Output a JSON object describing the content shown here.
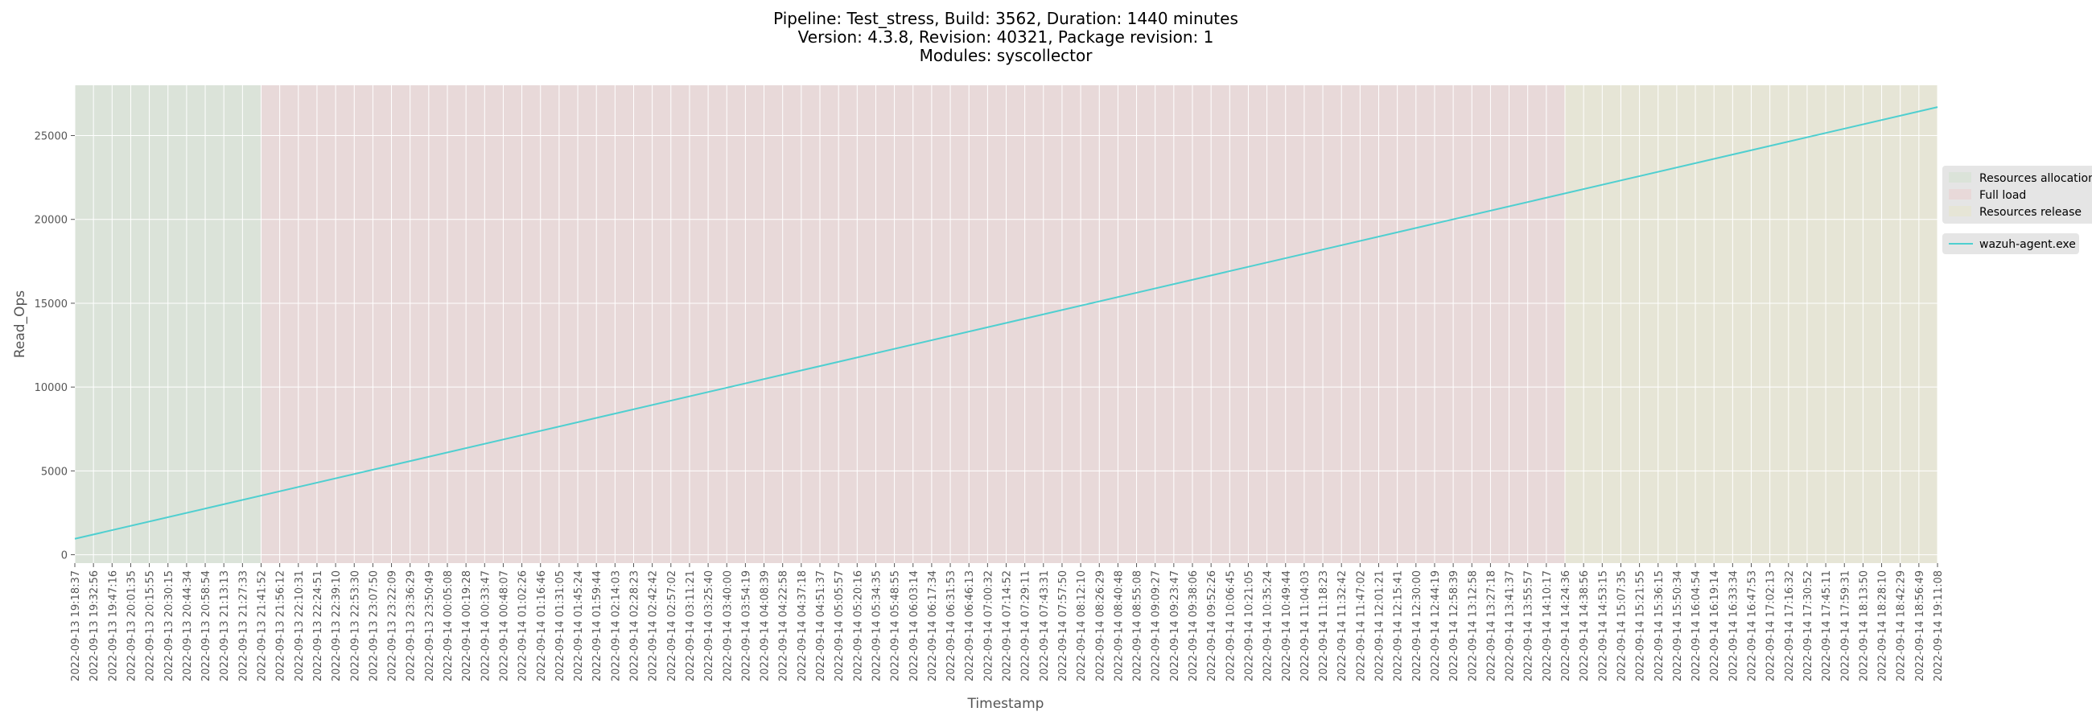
{
  "chart_data": {
    "type": "line",
    "title_lines": [
      "Pipeline: Test_stress, Build: 3562, Duration: 1440 minutes",
      "Version: 4.3.8, Revision: 40321, Package revision: 1",
      "Modules: syscollector"
    ],
    "xlabel": "Timestamp",
    "ylabel": "Read_Ops",
    "ylim": [
      -500,
      28000
    ],
    "yticks": [
      0,
      5000,
      10000,
      15000,
      20000,
      25000
    ],
    "x_tick_labels": [
      "2022-09-13 19:18:37",
      "2022-09-13 19:32:56",
      "2022-09-13 19:47:16",
      "2022-09-13 20:01:35",
      "2022-09-13 20:15:55",
      "2022-09-13 20:30:15",
      "2022-09-13 20:44:34",
      "2022-09-13 20:58:54",
      "2022-09-13 21:13:13",
      "2022-09-13 21:27:33",
      "2022-09-13 21:41:52",
      "2022-09-13 21:56:12",
      "2022-09-13 22:10:31",
      "2022-09-13 22:24:51",
      "2022-09-13 22:39:10",
      "2022-09-13 22:53:30",
      "2022-09-13 23:07:50",
      "2022-09-13 23:22:09",
      "2022-09-13 23:36:29",
      "2022-09-13 23:50:49",
      "2022-09-14 00:05:08",
      "2022-09-14 00:19:28",
      "2022-09-14 00:33:47",
      "2022-09-14 00:48:07",
      "2022-09-14 01:02:26",
      "2022-09-14 01:16:46",
      "2022-09-14 01:31:05",
      "2022-09-14 01:45:24",
      "2022-09-14 01:59:44",
      "2022-09-14 02:14:03",
      "2022-09-14 02:28:23",
      "2022-09-14 02:42:42",
      "2022-09-14 02:57:02",
      "2022-09-14 03:11:21",
      "2022-09-14 03:25:40",
      "2022-09-14 03:40:00",
      "2022-09-14 03:54:19",
      "2022-09-14 04:08:39",
      "2022-09-14 04:22:58",
      "2022-09-14 04:37:18",
      "2022-09-14 04:51:37",
      "2022-09-14 05:05:57",
      "2022-09-14 05:20:16",
      "2022-09-14 05:34:35",
      "2022-09-14 05:48:55",
      "2022-09-14 06:03:14",
      "2022-09-14 06:17:34",
      "2022-09-14 06:31:53",
      "2022-09-14 06:46:13",
      "2022-09-14 07:00:32",
      "2022-09-14 07:14:52",
      "2022-09-14 07:29:11",
      "2022-09-14 07:43:31",
      "2022-09-14 07:57:50",
      "2022-09-14 08:12:10",
      "2022-09-14 08:26:29",
      "2022-09-14 08:40:48",
      "2022-09-14 08:55:08",
      "2022-09-14 09:09:27",
      "2022-09-14 09:23:47",
      "2022-09-14 09:38:06",
      "2022-09-14 09:52:26",
      "2022-09-14 10:06:45",
      "2022-09-14 10:21:05",
      "2022-09-14 10:35:24",
      "2022-09-14 10:49:44",
      "2022-09-14 11:04:03",
      "2022-09-14 11:18:23",
      "2022-09-14 11:32:42",
      "2022-09-14 11:47:02",
      "2022-09-14 12:01:21",
      "2022-09-14 12:15:41",
      "2022-09-14 12:30:00",
      "2022-09-14 12:44:19",
      "2022-09-14 12:58:39",
      "2022-09-14 13:12:58",
      "2022-09-14 13:27:18",
      "2022-09-14 13:41:37",
      "2022-09-14 13:55:57",
      "2022-09-14 14:10:17",
      "2022-09-14 14:24:36",
      "2022-09-14 14:38:56",
      "2022-09-14 14:53:15",
      "2022-09-14 15:07:35",
      "2022-09-14 15:21:55",
      "2022-09-14 15:36:15",
      "2022-09-14 15:50:34",
      "2022-09-14 16:04:54",
      "2022-09-14 16:19:14",
      "2022-09-14 16:33:34",
      "2022-09-14 16:47:53",
      "2022-09-14 17:02:13",
      "2022-09-14 17:16:32",
      "2022-09-14 17:30:52",
      "2022-09-14 17:45:11",
      "2022-09-14 17:59:31",
      "2022-09-14 18:13:50",
      "2022-09-14 18:28:10",
      "2022-09-14 18:42:29",
      "2022-09-14 18:56:49",
      "2022-09-14 19:11:08"
    ],
    "phases": [
      {
        "name": "Resources allocation",
        "from_tick": 0,
        "to_tick": 10,
        "color": "#dbe3d9"
      },
      {
        "name": "Full load",
        "from_tick": 10,
        "to_tick": 80,
        "color": "#e8d9d9"
      },
      {
        "name": "Resources release",
        "from_tick": 80,
        "to_tick": 100,
        "color": "#e6e5d6"
      }
    ],
    "series": [
      {
        "name": "wazuh-agent.exe",
        "color": "#4fcfd0",
        "x": [
          "2022-09-13 19:18:37",
          "2022-09-14 19:11:08"
        ],
        "values": [
          950,
          26700
        ]
      }
    ],
    "legend_placement": "right",
    "grid": true,
    "plot_background": "#e5e5e5"
  }
}
